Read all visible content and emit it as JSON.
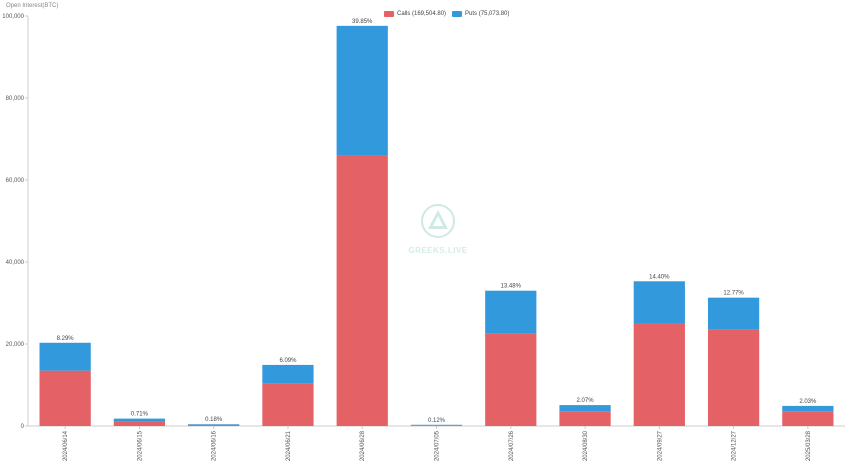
{
  "chart_data": {
    "type": "bar",
    "stacked": true,
    "ylabel": "Open Interest(BTC)",
    "ylim": [
      0,
      100000
    ],
    "yticks": [
      0,
      20000,
      40000,
      60000,
      80000,
      100000
    ],
    "ytick_labels": [
      "0",
      "20,000",
      "40,000",
      "60,000",
      "80,000",
      "100,000"
    ],
    "categories": [
      "2024/06/14",
      "2024/06/15",
      "2024/06/16",
      "2024/06/21",
      "2024/06/28",
      "2024/07/05",
      "2024/07/26",
      "2024/08/30",
      "2024/09/27",
      "2024/12/27",
      "2025/03/28"
    ],
    "series": [
      {
        "name": "Calls (169,504.80)",
        "color": "#e46165",
        "values": [
          13500,
          1200,
          300,
          10400,
          66000,
          200,
          22600,
          3600,
          24900,
          23500,
          3600
        ]
      },
      {
        "name": "Puts (75,073.80)",
        "color": "#3399dd",
        "values": [
          6800,
          600,
          150,
          4500,
          31600,
          100,
          10400,
          1500,
          10400,
          7800,
          1300
        ]
      }
    ],
    "data_labels": [
      "8.29%",
      "0.71%",
      "0.18%",
      "6.09%",
      "39.85%",
      "0.12%",
      "13.48%",
      "2.07%",
      "14.40%",
      "12.77%",
      "2.03%"
    ],
    "legend_position": "top-center",
    "grid": false
  },
  "watermark": {
    "text": "GREEKS.LIVE"
  }
}
